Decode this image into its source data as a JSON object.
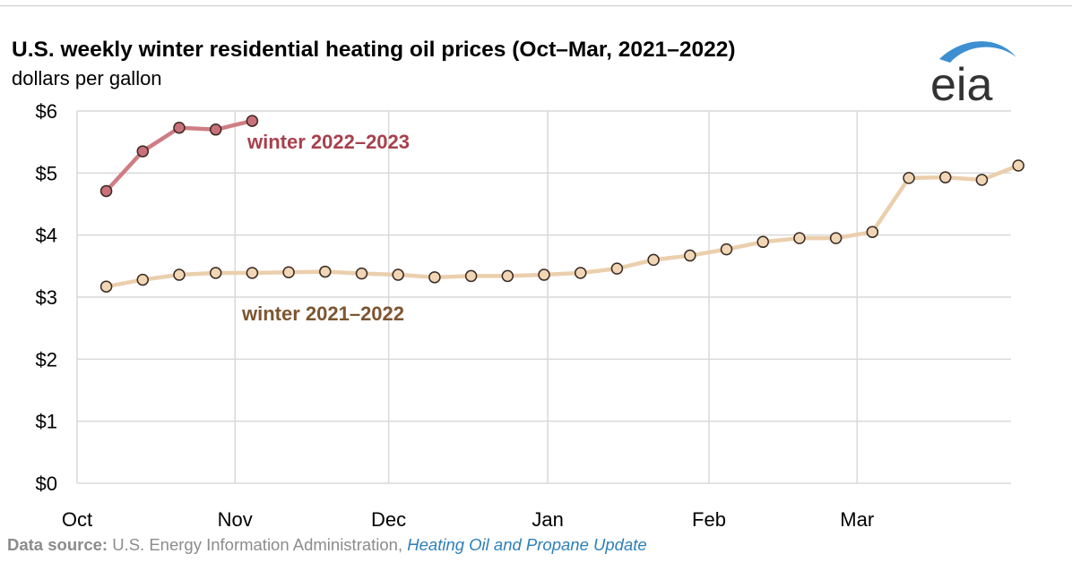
{
  "header": {
    "title": "U.S. weekly winter residential heating oil prices (Oct–Mar, 2021–2022)",
    "subtitle": "dollars per gallon"
  },
  "logo": {
    "text": "eia"
  },
  "footer": {
    "source_label": "Data source:",
    "source_text": "U.S. Energy Information Administration,",
    "publication": "Heating Oil and Propane Update"
  },
  "colors": {
    "series_2022_line": "#cf7d84",
    "series_2022_marker": "#c9707b",
    "series_2022_label": "#a8404d",
    "series_2021_line": "#ebcfad",
    "series_2021_marker": "#f0d6b5",
    "series_2021_label": "#7d5530",
    "grid": "#d9d9d9",
    "logo_swoosh": "#3d8fd1"
  },
  "chart_data": {
    "type": "line",
    "title": "U.S. weekly winter residential heating oil prices (Oct–Mar, 2021–2022)",
    "ylabel": "dollars per gallon",
    "ylim": [
      0,
      6
    ],
    "yticks": [
      "$0",
      "$1",
      "$2",
      "$3",
      "$4",
      "$5",
      "$6"
    ],
    "xlim": [
      0,
      25.6
    ],
    "xticks": [
      {
        "label": "Oct",
        "x": 0
      },
      {
        "label": "Nov",
        "x": 4.33
      },
      {
        "label": "Dec",
        "x": 8.54
      },
      {
        "label": "Jan",
        "x": 12.9
      },
      {
        "label": "Feb",
        "x": 17.32
      },
      {
        "label": "Mar",
        "x": 21.38
      }
    ],
    "grid": true,
    "series": [
      {
        "name": "winter 2021–2022",
        "x": [
          0.8,
          1.8,
          2.8,
          3.8,
          4.8,
          5.8,
          6.8,
          7.8,
          8.8,
          9.8,
          10.8,
          11.8,
          12.8,
          13.8,
          14.8,
          15.8,
          16.8,
          17.8,
          18.8,
          19.8,
          20.8,
          21.8,
          22.8,
          23.8,
          24.8,
          25.8
        ],
        "values": [
          3.17,
          3.28,
          3.36,
          3.39,
          3.39,
          3.4,
          3.41,
          3.38,
          3.36,
          3.32,
          3.34,
          3.34,
          3.36,
          3.39,
          3.46,
          3.6,
          3.67,
          3.77,
          3.89,
          3.95,
          3.95,
          4.05,
          4.92,
          4.93,
          4.89,
          5.12
        ]
      },
      {
        "name": "winter 2022–2023",
        "x": [
          0.8,
          1.8,
          2.8,
          3.8,
          4.8
        ],
        "values": [
          4.71,
          5.35,
          5.73,
          5.7,
          5.84
        ]
      }
    ]
  }
}
